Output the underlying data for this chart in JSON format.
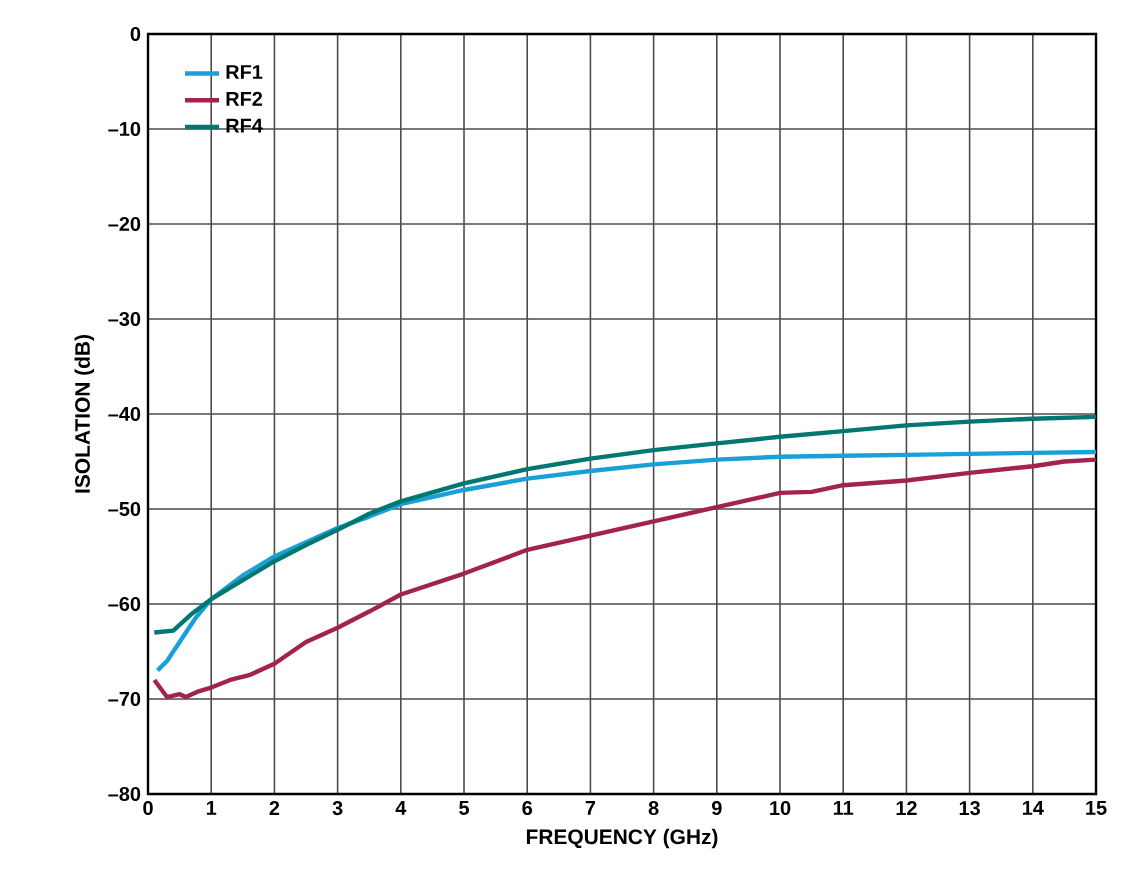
{
  "chart_data": {
    "type": "line",
    "xlabel": "FREQUENCY (GHz)",
    "ylabel": "ISOLATION (dB)",
    "xlim": [
      0,
      15
    ],
    "ylim": [
      -80,
      0
    ],
    "xticks": [
      0,
      1,
      2,
      3,
      4,
      5,
      6,
      7,
      8,
      9,
      10,
      11,
      12,
      13,
      14,
      15
    ],
    "yticks": [
      {
        "value": -80,
        "label": "–80"
      },
      {
        "value": -70,
        "label": "–70"
      },
      {
        "value": -60,
        "label": "–60"
      },
      {
        "value": -50,
        "label": "–50"
      },
      {
        "value": -40,
        "label": "–40"
      },
      {
        "value": -30,
        "label": "–30"
      },
      {
        "value": -20,
        "label": "–20"
      },
      {
        "value": -10,
        "label": "–10"
      },
      0
    ],
    "grid": true,
    "legend": "top left",
    "line_style": "solid",
    "series": [
      {
        "name": "RF1",
        "color": "#1aa0d8",
        "x": [
          0.15,
          0.3,
          0.5,
          0.75,
          1,
          1.5,
          2,
          2.5,
          3,
          3.5,
          4,
          5,
          6,
          7,
          8,
          9,
          10,
          11,
          12,
          13,
          14,
          15
        ],
        "values": [
          -67,
          -66,
          -64,
          -61.5,
          -59.5,
          -57,
          -55,
          -53.5,
          -52,
          -50.8,
          -49.5,
          -48,
          -46.8,
          -46,
          -45.3,
          -44.8,
          -44.5,
          -44.4,
          -44.3,
          -44.2,
          -44.1,
          -44
        ]
      },
      {
        "name": "RF2",
        "color": "#a3234f",
        "x": [
          0.1,
          0.3,
          0.5,
          0.6,
          0.8,
          1,
          1.3,
          1.6,
          2,
          2.5,
          3,
          3.5,
          4,
          5,
          6,
          7,
          8,
          9,
          10,
          10.5,
          11,
          12,
          13,
          14,
          14.5,
          15
        ],
        "values": [
          -68,
          -69.8,
          -69.5,
          -69.8,
          -69.2,
          -68.8,
          -68,
          -67.5,
          -66.3,
          -64,
          -62.5,
          -60.8,
          -59,
          -56.8,
          -54.3,
          -52.8,
          -51.3,
          -49.8,
          -48.3,
          -48.2,
          -47.5,
          -47,
          -46.2,
          -45.5,
          -45,
          -44.8
        ]
      },
      {
        "name": "RF4",
        "color": "#007770",
        "x": [
          0.1,
          0.4,
          0.7,
          1,
          1.5,
          2,
          2.5,
          3,
          3.5,
          4,
          5,
          6,
          7,
          8,
          9,
          10,
          11,
          12,
          13,
          14,
          15
        ],
        "values": [
          -63,
          -62.8,
          -61,
          -59.5,
          -57.5,
          -55.5,
          -53.8,
          -52.2,
          -50.5,
          -49.2,
          -47.3,
          -45.8,
          -44.7,
          -43.8,
          -43.1,
          -42.4,
          -41.8,
          -41.2,
          -40.8,
          -40.5,
          -40.3
        ]
      }
    ]
  }
}
